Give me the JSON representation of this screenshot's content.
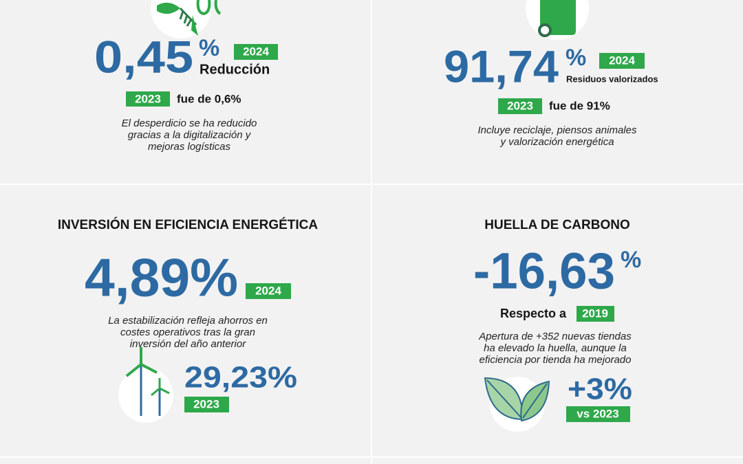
{
  "panels": [
    {
      "value": "0,45",
      "unit": "%",
      "badge": "2024",
      "label": "Reducción",
      "compare_badge": "2023",
      "compare_text": "fue de 0,6%",
      "note": [
        "El desperdicio se ha reducido",
        "gracias a la digitalización y",
        "mejoras logísticas"
      ]
    },
    {
      "value": "91,74",
      "unit": "%",
      "badge": "2024",
      "label": "Residuos valorizados",
      "compare_badge": "2023",
      "compare_text": "fue de 91%",
      "note": [
        "Incluye reciclaje, piensos animales",
        "y valorización energética"
      ]
    },
    {
      "title": "INVERSIÓN EN EFICIENCIA ENERGÉTICA",
      "value": "4,89%",
      "badge": "2024",
      "note": [
        "La estabilización refleja ahorros en",
        "costes operativos tras la gran",
        "inversión del año anterior"
      ],
      "secondary_value": "29,23%",
      "secondary_badge": "2023"
    },
    {
      "title": "HUELLA DE CARBONO",
      "value": "-16,63",
      "unit": "%",
      "compare_text": "Respecto a",
      "compare_badge": "2019",
      "note": [
        "Apertura de +352 nuevas tiendas",
        "ha elevado la huella, aunque la",
        "eficiencia por tienda ha mejorado"
      ],
      "secondary_value": "+3%",
      "secondary_badge": "vs 2023"
    }
  ]
}
